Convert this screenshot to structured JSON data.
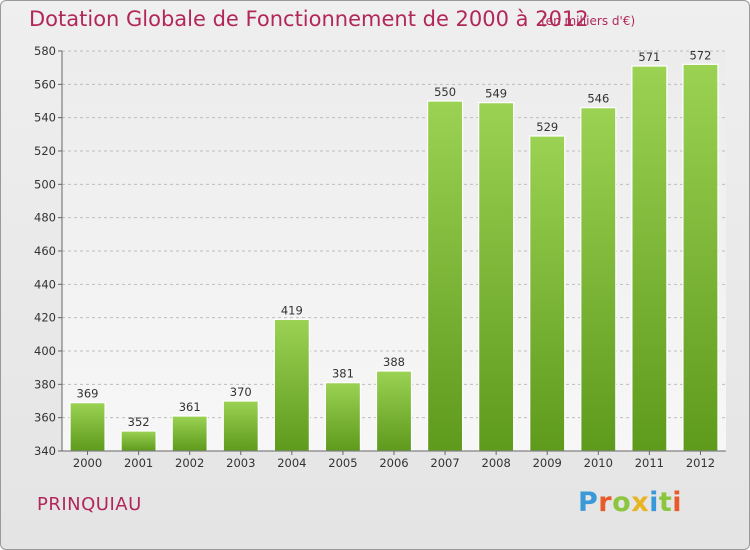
{
  "chart_data": {
    "type": "bar",
    "title": "Dotation Globale de Fonctionnement de 2000 à 2012",
    "subtitle": "(en milliers d'€)",
    "categories": [
      "2000",
      "2001",
      "2002",
      "2003",
      "2004",
      "2005",
      "2006",
      "2007",
      "2008",
      "2009",
      "2010",
      "2011",
      "2012"
    ],
    "values": [
      369,
      352,
      361,
      370,
      419,
      381,
      388,
      550,
      549,
      529,
      546,
      571,
      572
    ],
    "ylim": [
      340,
      580
    ],
    "yticks": [
      340,
      360,
      380,
      400,
      420,
      440,
      460,
      480,
      500,
      520,
      540,
      560,
      580
    ],
    "grid": true,
    "bar_color": "#7ab832"
  },
  "footer": {
    "town": "PRINQUIAU",
    "logo": {
      "letters": [
        "P",
        "r",
        "o",
        "x",
        "i",
        "t",
        "i"
      ],
      "colors": [
        "#3a9ad9",
        "#e85a2a",
        "#8cc63f",
        "#e8b420",
        "#3a9ad9",
        "#8cc63f",
        "#e85a2a"
      ]
    }
  }
}
